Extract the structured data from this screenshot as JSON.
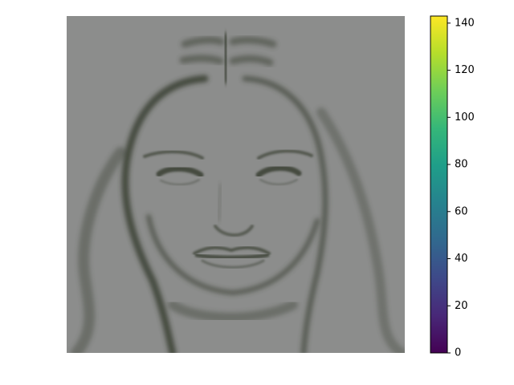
{
  "chart_data": {
    "type": "heatmap",
    "title": "",
    "xlabel": "",
    "ylabel": "",
    "axes_visible": false,
    "image": {
      "subject": "grayscale face (eigenface-style reconstruction)",
      "dominant_level": 88,
      "level_range": [
        0,
        143
      ]
    },
    "colorbar": {
      "colormap": "viridis",
      "range": [
        0,
        143
      ],
      "ticks": [
        0,
        20,
        40,
        60,
        80,
        100,
        120,
        140
      ],
      "tick_labels": [
        "0",
        "20",
        "40",
        "60",
        "80",
        "100",
        "120",
        "140"
      ]
    },
    "colors": {
      "background": "#ffffff",
      "image_gray": "#8c8d8c",
      "image_dark": "#2a3222",
      "viridis_stops": [
        "#440154",
        "#482878",
        "#3e4989",
        "#31688e",
        "#26828e",
        "#1f9e89",
        "#35b779",
        "#6ece58",
        "#b5de2b",
        "#fde725"
      ]
    }
  }
}
